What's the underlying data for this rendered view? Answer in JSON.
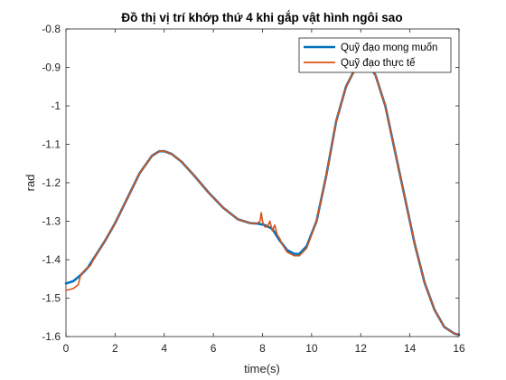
{
  "chart_data": {
    "type": "line",
    "title": "Đồ thị vị trí khớp thứ 4 khi gắp vật hình ngôi sao",
    "xlabel": "time(s)",
    "ylabel": "rad",
    "xlim": [
      0,
      16
    ],
    "ylim": [
      -1.6,
      -0.8
    ],
    "xticks": [
      0,
      2,
      4,
      6,
      8,
      10,
      12,
      14,
      16
    ],
    "yticks": [
      -1.6,
      -1.5,
      -1.4,
      -1.3,
      -1.2,
      -1.1,
      -1,
      -0.9,
      -0.8
    ],
    "xtick_labels": [
      "0",
      "2",
      "4",
      "6",
      "8",
      "10",
      "12",
      "14",
      "16"
    ],
    "ytick_labels": [
      "-1.6",
      "-1.5",
      "-1.4",
      "-1.3",
      "-1.2",
      "-1.1",
      "-1",
      "-0.9",
      "-0.8"
    ],
    "grid": false,
    "legend_position": "top-right",
    "colors": {
      "desired": "#0072BD",
      "actual": "#D95319"
    },
    "series": [
      {
        "name": "Quỹ đạo mong muốn",
        "color": "#0072BD",
        "x": [
          0,
          0.3,
          0.6,
          0.9,
          1.2,
          1.6,
          2.0,
          2.5,
          3.0,
          3.5,
          3.8,
          4.0,
          4.3,
          4.7,
          5.2,
          5.8,
          6.4,
          7.0,
          7.5,
          7.8,
          8.1,
          8.4,
          8.7,
          9.0,
          9.3,
          9.5,
          9.8,
          10.2,
          10.6,
          11.0,
          11.4,
          11.8,
          12.1,
          12.3,
          12.6,
          13.0,
          13.4,
          13.8,
          14.2,
          14.6,
          15.0,
          15.4,
          15.8,
          16.0
        ],
        "y": [
          -1.462,
          -1.456,
          -1.44,
          -1.42,
          -1.39,
          -1.35,
          -1.305,
          -1.24,
          -1.175,
          -1.13,
          -1.118,
          -1.118,
          -1.125,
          -1.145,
          -1.18,
          -1.225,
          -1.265,
          -1.295,
          -1.305,
          -1.306,
          -1.31,
          -1.32,
          -1.35,
          -1.375,
          -1.385,
          -1.385,
          -1.365,
          -1.3,
          -1.18,
          -1.04,
          -0.95,
          -0.9,
          -0.89,
          -0.892,
          -0.92,
          -1.0,
          -1.12,
          -1.24,
          -1.36,
          -1.46,
          -1.53,
          -1.575,
          -1.592,
          -1.595
        ]
      },
      {
        "name": "Quỹ đạo thực tế",
        "color": "#D95319",
        "x": [
          0,
          0.3,
          0.5,
          0.6,
          0.8,
          1.0,
          1.2,
          1.6,
          2.0,
          2.5,
          3.0,
          3.5,
          3.8,
          4.0,
          4.3,
          4.7,
          5.2,
          5.8,
          6.4,
          7.0,
          7.5,
          7.8,
          7.9,
          7.95,
          8.0,
          8.05,
          8.1,
          8.2,
          8.3,
          8.4,
          8.5,
          8.6,
          8.7,
          8.8,
          9.0,
          9.3,
          9.5,
          9.8,
          10.2,
          10.6,
          11.0,
          11.4,
          11.8,
          12.1,
          12.3,
          12.6,
          13.0,
          13.4,
          13.8,
          14.2,
          14.6,
          15.0,
          15.4,
          15.8,
          16.0
        ],
        "y": [
          -1.48,
          -1.475,
          -1.465,
          -1.44,
          -1.425,
          -1.415,
          -1.39,
          -1.35,
          -1.305,
          -1.24,
          -1.175,
          -1.13,
          -1.118,
          -1.118,
          -1.125,
          -1.145,
          -1.18,
          -1.225,
          -1.265,
          -1.295,
          -1.305,
          -1.305,
          -1.3,
          -1.278,
          -1.3,
          -1.31,
          -1.315,
          -1.315,
          -1.3,
          -1.325,
          -1.31,
          -1.335,
          -1.345,
          -1.36,
          -1.38,
          -1.39,
          -1.39,
          -1.37,
          -1.3,
          -1.18,
          -1.04,
          -0.95,
          -0.9,
          -0.89,
          -0.892,
          -0.92,
          -1.0,
          -1.12,
          -1.24,
          -1.36,
          -1.46,
          -1.53,
          -1.575,
          -1.592,
          -1.595
        ]
      }
    ]
  }
}
